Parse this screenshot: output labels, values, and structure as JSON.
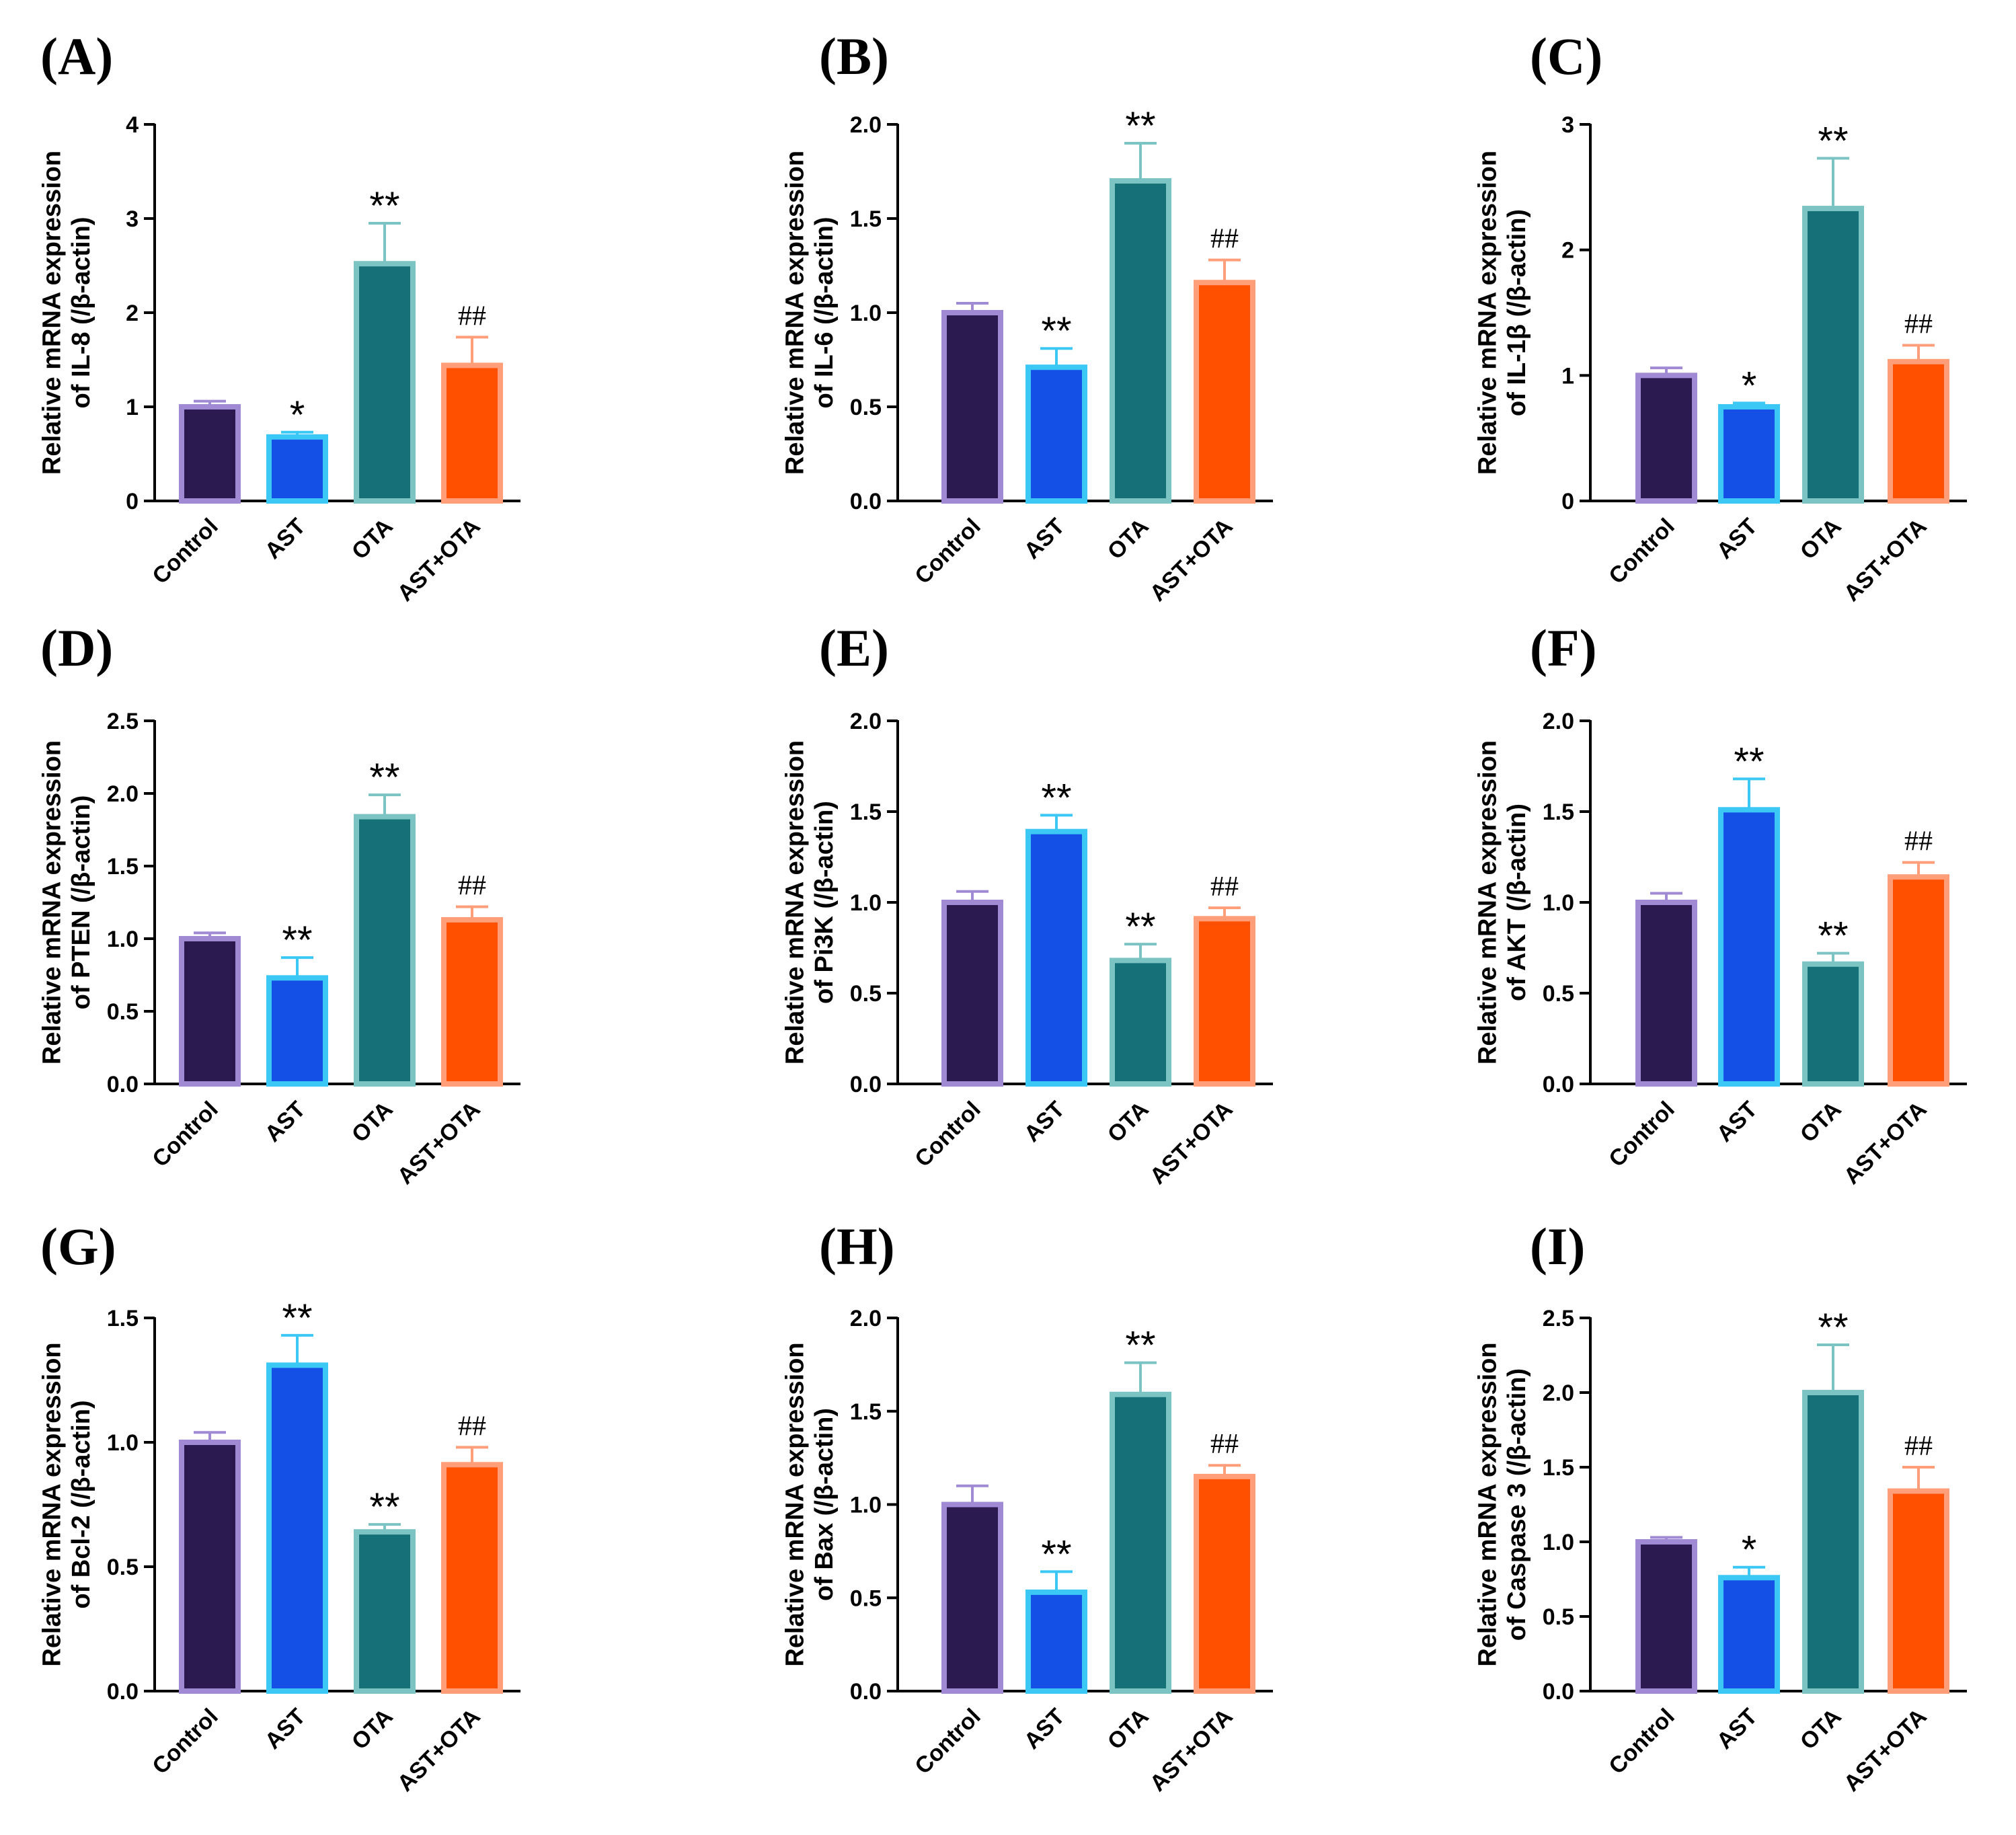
{
  "style": {
    "fills": [
      "#2b1a4f",
      "#1450e6",
      "#157078",
      "#ff5000"
    ],
    "strokes": [
      "#a08ad4",
      "#3cc8f5",
      "#7cc4c4",
      "#ff9e78"
    ],
    "axis_color": "#000000"
  },
  "chart_data": [
    {
      "panel": "(A)",
      "type": "bar",
      "ylabel_lines": [
        "Relative mRNA expression",
        "of IL-8 (/β-actin)"
      ],
      "categories": [
        "Control",
        "AST",
        "OTA",
        "AST+OTA"
      ],
      "values": [
        1.0,
        0.68,
        2.52,
        1.44
      ],
      "errors": [
        0.06,
        0.05,
        0.43,
        0.3
      ],
      "significance": [
        "",
        "*",
        "**",
        "##"
      ],
      "ylim": [
        0,
        4
      ],
      "ticks": [
        0,
        1,
        2,
        3,
        4
      ],
      "tick_labels": [
        "0",
        "1",
        "2",
        "3",
        "4"
      ]
    },
    {
      "panel": "(B)",
      "type": "bar",
      "ylabel_lines": [
        "Relative mRNA expression",
        "of IL-6 (/β-actin)"
      ],
      "categories": [
        "Control",
        "AST",
        "OTA",
        "AST+OTA"
      ],
      "values": [
        1.0,
        0.71,
        1.7,
        1.16
      ],
      "errors": [
        0.05,
        0.1,
        0.2,
        0.12
      ],
      "significance": [
        "",
        "**",
        "**",
        "##"
      ],
      "ylim": [
        0,
        2
      ],
      "ticks": [
        0,
        0.5,
        1,
        1.5,
        2
      ],
      "tick_labels": [
        "0.0",
        "0.5",
        "1.0",
        "1.5",
        "2.0"
      ]
    },
    {
      "panel": "(C)",
      "type": "bar",
      "ylabel_lines": [
        "Relative mRNA expression",
        "of IL-1β (/β-actin)"
      ],
      "categories": [
        "Control",
        "AST",
        "OTA",
        "AST+OTA"
      ],
      "values": [
        1.0,
        0.75,
        2.33,
        1.11
      ],
      "errors": [
        0.06,
        0.03,
        0.4,
        0.13
      ],
      "significance": [
        "",
        "*",
        "**",
        "##"
      ],
      "ylim": [
        0,
        3
      ],
      "ticks": [
        0,
        1,
        2,
        3
      ],
      "tick_labels": [
        "0",
        "1",
        "2",
        "3"
      ]
    },
    {
      "panel": "(D)",
      "type": "bar",
      "ylabel_lines": [
        "Relative mRNA expression",
        "of PTEN (/β-actin)"
      ],
      "categories": [
        "Control",
        "AST",
        "OTA",
        "AST+OTA"
      ],
      "values": [
        1.0,
        0.73,
        1.84,
        1.13
      ],
      "errors": [
        0.04,
        0.14,
        0.15,
        0.09
      ],
      "significance": [
        "",
        "**",
        "**",
        "##"
      ],
      "ylim": [
        0,
        2.5
      ],
      "ticks": [
        0,
        0.5,
        1,
        1.5,
        2,
        2.5
      ],
      "tick_labels": [
        "0.0",
        "0.5",
        "1.0",
        "1.5",
        "2.0",
        "2.5"
      ]
    },
    {
      "panel": "(E)",
      "type": "bar",
      "ylabel_lines": [
        "Relative mRNA expression",
        "of Pi3K (/β-actin)"
      ],
      "categories": [
        "Control",
        "AST",
        "OTA",
        "AST+OTA"
      ],
      "values": [
        1.0,
        1.39,
        0.68,
        0.91
      ],
      "errors": [
        0.06,
        0.09,
        0.09,
        0.06
      ],
      "significance": [
        "",
        "**",
        "**",
        "##"
      ],
      "ylim": [
        0,
        2
      ],
      "ticks": [
        0,
        0.5,
        1,
        1.5,
        2
      ],
      "tick_labels": [
        "0.0",
        "0.5",
        "1.0",
        "1.5",
        "2.0"
      ]
    },
    {
      "panel": "(F)",
      "type": "bar",
      "ylabel_lines": [
        "Relative mRNA expression",
        "of AKT (/β-actin)"
      ],
      "categories": [
        "Control",
        "AST",
        "OTA",
        "AST+OTA"
      ],
      "values": [
        1.0,
        1.51,
        0.66,
        1.14
      ],
      "errors": [
        0.05,
        0.17,
        0.06,
        0.08
      ],
      "significance": [
        "",
        "**",
        "**",
        "##"
      ],
      "ylim": [
        0,
        2
      ],
      "ticks": [
        0,
        0.5,
        1,
        1.5,
        2
      ],
      "tick_labels": [
        "0.0",
        "0.5",
        "1.0",
        "1.5",
        "2.0"
      ]
    },
    {
      "panel": "(G)",
      "type": "bar",
      "ylabel_lines": [
        "Relative mRNA expression",
        "of Bcl-2 (/β-actin)"
      ],
      "categories": [
        "Control",
        "AST",
        "OTA",
        "AST+OTA"
      ],
      "values": [
        1.0,
        1.31,
        0.64,
        0.91
      ],
      "errors": [
        0.04,
        0.12,
        0.03,
        0.07
      ],
      "significance": [
        "",
        "**",
        "**",
        "##"
      ],
      "ylim": [
        0,
        1.5
      ],
      "ticks": [
        0,
        0.5,
        1,
        1.5
      ],
      "tick_labels": [
        "0.0",
        "0.5",
        "1.0",
        "1.5"
      ]
    },
    {
      "panel": "(H)",
      "type": "bar",
      "ylabel_lines": [
        "Relative mRNA expression",
        "of Bax (/β-actin)"
      ],
      "categories": [
        "Control",
        "AST",
        "OTA",
        "AST+OTA"
      ],
      "values": [
        1.0,
        0.53,
        1.59,
        1.15
      ],
      "errors": [
        0.1,
        0.11,
        0.17,
        0.06
      ],
      "significance": [
        "",
        "**",
        "**",
        "##"
      ],
      "ylim": [
        0,
        2
      ],
      "ticks": [
        0,
        0.5,
        1,
        1.5,
        2
      ],
      "tick_labels": [
        "0.0",
        "0.5",
        "1.0",
        "1.5",
        "2.0"
      ]
    },
    {
      "panel": "(I)",
      "type": "bar",
      "ylabel_lines": [
        "Relative mRNA expression",
        "of Caspase 3 (/β-actin)"
      ],
      "categories": [
        "Control",
        "AST",
        "OTA",
        "AST+OTA"
      ],
      "values": [
        1.0,
        0.76,
        2.0,
        1.34
      ],
      "errors": [
        0.03,
        0.07,
        0.32,
        0.16
      ],
      "significance": [
        "",
        "*",
        "**",
        "##"
      ],
      "ylim": [
        0,
        2.5
      ],
      "ticks": [
        0,
        0.5,
        1,
        1.5,
        2,
        2.5
      ],
      "tick_labels": [
        "0.0",
        "0.5",
        "1.0",
        "1.5",
        "2.0",
        "2.5"
      ]
    }
  ]
}
